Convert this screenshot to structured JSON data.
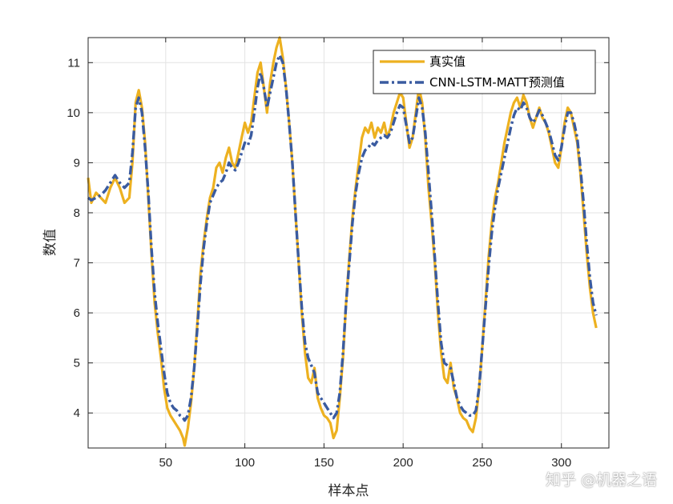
{
  "chart_data": {
    "type": "line",
    "title": "",
    "xlabel": "样本点",
    "ylabel": "数值",
    "xlim": [
      1,
      330
    ],
    "ylim": [
      3.3,
      11.5
    ],
    "xticks": [
      50,
      100,
      150,
      200,
      250,
      300
    ],
    "yticks": [
      4,
      5,
      6,
      7,
      8,
      9,
      10,
      11
    ],
    "grid": true,
    "legend_position": "top-right",
    "series": [
      {
        "name": "真实值",
        "color": "#EDB120",
        "style": "solid",
        "points": [
          [
            1,
            8.7
          ],
          [
            3,
            8.2
          ],
          [
            6,
            8.4
          ],
          [
            9,
            8.3
          ],
          [
            12,
            8.2
          ],
          [
            15,
            8.5
          ],
          [
            18,
            8.7
          ],
          [
            21,
            8.5
          ],
          [
            24,
            8.2
          ],
          [
            27,
            8.3
          ],
          [
            29,
            9.0
          ],
          [
            31,
            10.2
          ],
          [
            33,
            10.45
          ],
          [
            35,
            10.1
          ],
          [
            37,
            9.4
          ],
          [
            39,
            8.3
          ],
          [
            41,
            7.2
          ],
          [
            43,
            6.2
          ],
          [
            45,
            5.6
          ],
          [
            47,
            5.1
          ],
          [
            49,
            4.5
          ],
          [
            51,
            4.1
          ],
          [
            53,
            3.95
          ],
          [
            55,
            3.85
          ],
          [
            57,
            3.75
          ],
          [
            59,
            3.65
          ],
          [
            61,
            3.5
          ],
          [
            62,
            3.35
          ],
          [
            64,
            3.7
          ],
          [
            66,
            4.2
          ],
          [
            68,
            4.9
          ],
          [
            70,
            5.8
          ],
          [
            72,
            6.8
          ],
          [
            74,
            7.4
          ],
          [
            76,
            7.9
          ],
          [
            78,
            8.3
          ],
          [
            80,
            8.5
          ],
          [
            82,
            8.9
          ],
          [
            84,
            9.0
          ],
          [
            86,
            8.8
          ],
          [
            88,
            9.1
          ],
          [
            90,
            9.3
          ],
          [
            92,
            9.0
          ],
          [
            94,
            8.9
          ],
          [
            96,
            9.2
          ],
          [
            98,
            9.5
          ],
          [
            100,
            9.8
          ],
          [
            102,
            9.6
          ],
          [
            104,
            9.8
          ],
          [
            106,
            10.3
          ],
          [
            108,
            10.8
          ],
          [
            110,
            11.0
          ],
          [
            112,
            10.5
          ],
          [
            114,
            10.0
          ],
          [
            116,
            10.6
          ],
          [
            118,
            11.0
          ],
          [
            120,
            11.3
          ],
          [
            122,
            11.5
          ],
          [
            124,
            11.1
          ],
          [
            126,
            10.5
          ],
          [
            128,
            9.8
          ],
          [
            130,
            9.0
          ],
          [
            132,
            8.0
          ],
          [
            134,
            7.0
          ],
          [
            136,
            6.0
          ],
          [
            138,
            5.2
          ],
          [
            140,
            4.7
          ],
          [
            142,
            4.6
          ],
          [
            144,
            4.9
          ],
          [
            146,
            4.3
          ],
          [
            148,
            4.1
          ],
          [
            150,
            3.95
          ],
          [
            152,
            3.9
          ],
          [
            154,
            3.8
          ],
          [
            156,
            3.5
          ],
          [
            158,
            3.65
          ],
          [
            160,
            4.3
          ],
          [
            162,
            5.1
          ],
          [
            164,
            6.2
          ],
          [
            166,
            7.1
          ],
          [
            168,
            7.9
          ],
          [
            170,
            8.5
          ],
          [
            172,
            9.0
          ],
          [
            174,
            9.5
          ],
          [
            176,
            9.7
          ],
          [
            178,
            9.6
          ],
          [
            180,
            9.8
          ],
          [
            182,
            9.5
          ],
          [
            184,
            9.7
          ],
          [
            186,
            9.6
          ],
          [
            188,
            9.8
          ],
          [
            190,
            9.5
          ],
          [
            192,
            9.7
          ],
          [
            194,
            10.0
          ],
          [
            196,
            10.2
          ],
          [
            198,
            10.4
          ],
          [
            200,
            10.3
          ],
          [
            202,
            9.8
          ],
          [
            204,
            9.3
          ],
          [
            206,
            9.5
          ],
          [
            208,
            10.0
          ],
          [
            210,
            10.5
          ],
          [
            212,
            10.2
          ],
          [
            214,
            9.5
          ],
          [
            216,
            8.5
          ],
          [
            218,
            7.8
          ],
          [
            220,
            7.0
          ],
          [
            222,
            6.0
          ],
          [
            224,
            5.2
          ],
          [
            226,
            4.7
          ],
          [
            228,
            4.6
          ],
          [
            230,
            5.0
          ],
          [
            232,
            4.5
          ],
          [
            234,
            4.3
          ],
          [
            236,
            4.0
          ],
          [
            238,
            3.9
          ],
          [
            240,
            3.85
          ],
          [
            242,
            3.7
          ],
          [
            244,
            3.62
          ],
          [
            246,
            3.9
          ],
          [
            248,
            4.5
          ],
          [
            250,
            5.3
          ],
          [
            252,
            6.2
          ],
          [
            254,
            7.1
          ],
          [
            256,
            7.8
          ],
          [
            258,
            8.3
          ],
          [
            260,
            8.6
          ],
          [
            262,
            9.0
          ],
          [
            264,
            9.4
          ],
          [
            266,
            9.7
          ],
          [
            268,
            10.0
          ],
          [
            270,
            10.2
          ],
          [
            272,
            10.3
          ],
          [
            274,
            10.1
          ],
          [
            276,
            10.35
          ],
          [
            278,
            10.2
          ],
          [
            280,
            9.9
          ],
          [
            282,
            9.7
          ],
          [
            284,
            9.9
          ],
          [
            286,
            10.1
          ],
          [
            288,
            9.9
          ],
          [
            290,
            9.8
          ],
          [
            292,
            9.6
          ],
          [
            294,
            9.3
          ],
          [
            296,
            9.0
          ],
          [
            298,
            8.9
          ],
          [
            300,
            9.3
          ],
          [
            302,
            9.8
          ],
          [
            304,
            10.1
          ],
          [
            306,
            10.0
          ],
          [
            308,
            9.7
          ],
          [
            310,
            9.4
          ],
          [
            312,
            8.8
          ],
          [
            314,
            8.0
          ],
          [
            316,
            7.2
          ],
          [
            318,
            6.5
          ],
          [
            320,
            6.0
          ],
          [
            322,
            5.7
          ]
        ]
      },
      {
        "name": "CNN-LSTM-MATT预测值",
        "color": "#3A5BA0",
        "style": "dashdot",
        "points": [
          [
            1,
            8.3
          ],
          [
            3,
            8.25
          ],
          [
            6,
            8.3
          ],
          [
            9,
            8.35
          ],
          [
            12,
            8.45
          ],
          [
            15,
            8.6
          ],
          [
            18,
            8.75
          ],
          [
            21,
            8.6
          ],
          [
            24,
            8.5
          ],
          [
            27,
            8.6
          ],
          [
            29,
            9.2
          ],
          [
            31,
            10.1
          ],
          [
            33,
            10.3
          ],
          [
            35,
            10.0
          ],
          [
            37,
            9.3
          ],
          [
            39,
            8.4
          ],
          [
            41,
            7.3
          ],
          [
            43,
            6.4
          ],
          [
            45,
            5.8
          ],
          [
            47,
            5.3
          ],
          [
            49,
            4.8
          ],
          [
            51,
            4.4
          ],
          [
            53,
            4.2
          ],
          [
            55,
            4.1
          ],
          [
            57,
            4.05
          ],
          [
            59,
            3.95
          ],
          [
            61,
            3.9
          ],
          [
            62,
            3.85
          ],
          [
            64,
            3.95
          ],
          [
            66,
            4.3
          ],
          [
            68,
            4.9
          ],
          [
            70,
            5.7
          ],
          [
            72,
            6.6
          ],
          [
            74,
            7.3
          ],
          [
            76,
            7.8
          ],
          [
            78,
            8.2
          ],
          [
            80,
            8.35
          ],
          [
            82,
            8.5
          ],
          [
            84,
            8.6
          ],
          [
            86,
            8.65
          ],
          [
            88,
            8.8
          ],
          [
            90,
            9.0
          ],
          [
            92,
            8.9
          ],
          [
            94,
            8.85
          ],
          [
            96,
            9.0
          ],
          [
            98,
            9.2
          ],
          [
            100,
            9.4
          ],
          [
            102,
            9.35
          ],
          [
            104,
            9.55
          ],
          [
            106,
            10.0
          ],
          [
            108,
            10.5
          ],
          [
            110,
            10.8
          ],
          [
            112,
            10.5
          ],
          [
            114,
            10.1
          ],
          [
            116,
            10.4
          ],
          [
            118,
            10.7
          ],
          [
            120,
            11.0
          ],
          [
            122,
            11.15
          ],
          [
            124,
            11.0
          ],
          [
            126,
            10.5
          ],
          [
            128,
            9.8
          ],
          [
            130,
            9.0
          ],
          [
            132,
            8.0
          ],
          [
            134,
            7.0
          ],
          [
            136,
            6.1
          ],
          [
            138,
            5.4
          ],
          [
            140,
            5.1
          ],
          [
            142,
            4.95
          ],
          [
            144,
            4.8
          ],
          [
            146,
            4.4
          ],
          [
            148,
            4.3
          ],
          [
            150,
            4.2
          ],
          [
            152,
            4.1
          ],
          [
            154,
            4.0
          ],
          [
            156,
            3.9
          ],
          [
            158,
            4.0
          ],
          [
            160,
            4.4
          ],
          [
            162,
            5.2
          ],
          [
            164,
            6.2
          ],
          [
            166,
            7.0
          ],
          [
            168,
            7.8
          ],
          [
            170,
            8.4
          ],
          [
            172,
            8.8
          ],
          [
            174,
            9.1
          ],
          [
            176,
            9.25
          ],
          [
            178,
            9.3
          ],
          [
            180,
            9.4
          ],
          [
            182,
            9.35
          ],
          [
            184,
            9.45
          ],
          [
            186,
            9.5
          ],
          [
            188,
            9.55
          ],
          [
            190,
            9.5
          ],
          [
            192,
            9.6
          ],
          [
            194,
            9.8
          ],
          [
            196,
            10.0
          ],
          [
            198,
            10.15
          ],
          [
            200,
            10.1
          ],
          [
            202,
            9.75
          ],
          [
            204,
            9.4
          ],
          [
            206,
            9.5
          ],
          [
            208,
            9.9
          ],
          [
            210,
            10.3
          ],
          [
            212,
            10.1
          ],
          [
            214,
            9.6
          ],
          [
            216,
            8.8
          ],
          [
            218,
            8.0
          ],
          [
            220,
            7.1
          ],
          [
            222,
            6.2
          ],
          [
            224,
            5.4
          ],
          [
            226,
            5.0
          ],
          [
            228,
            4.95
          ],
          [
            230,
            4.9
          ],
          [
            232,
            4.6
          ],
          [
            234,
            4.3
          ],
          [
            236,
            4.15
          ],
          [
            238,
            4.05
          ],
          [
            240,
            4.0
          ],
          [
            242,
            3.95
          ],
          [
            244,
            3.95
          ],
          [
            246,
            4.05
          ],
          [
            248,
            4.5
          ],
          [
            250,
            5.3
          ],
          [
            252,
            6.1
          ],
          [
            254,
            6.9
          ],
          [
            256,
            7.6
          ],
          [
            258,
            8.1
          ],
          [
            260,
            8.5
          ],
          [
            262,
            8.8
          ],
          [
            264,
            9.1
          ],
          [
            266,
            9.4
          ],
          [
            268,
            9.7
          ],
          [
            270,
            9.95
          ],
          [
            272,
            10.1
          ],
          [
            274,
            10.05
          ],
          [
            276,
            10.2
          ],
          [
            278,
            10.1
          ],
          [
            280,
            9.9
          ],
          [
            282,
            9.8
          ],
          [
            284,
            9.9
          ],
          [
            286,
            10.05
          ],
          [
            288,
            9.95
          ],
          [
            290,
            9.8
          ],
          [
            292,
            9.65
          ],
          [
            294,
            9.4
          ],
          [
            296,
            9.15
          ],
          [
            298,
            9.05
          ],
          [
            300,
            9.3
          ],
          [
            302,
            9.7
          ],
          [
            304,
            10.0
          ],
          [
            306,
            10.0
          ],
          [
            308,
            9.8
          ],
          [
            310,
            9.5
          ],
          [
            312,
            8.9
          ],
          [
            314,
            8.2
          ],
          [
            316,
            7.4
          ],
          [
            318,
            6.7
          ],
          [
            320,
            6.2
          ],
          [
            322,
            5.95
          ]
        ]
      }
    ]
  },
  "watermark": "知乎 @机器之语"
}
